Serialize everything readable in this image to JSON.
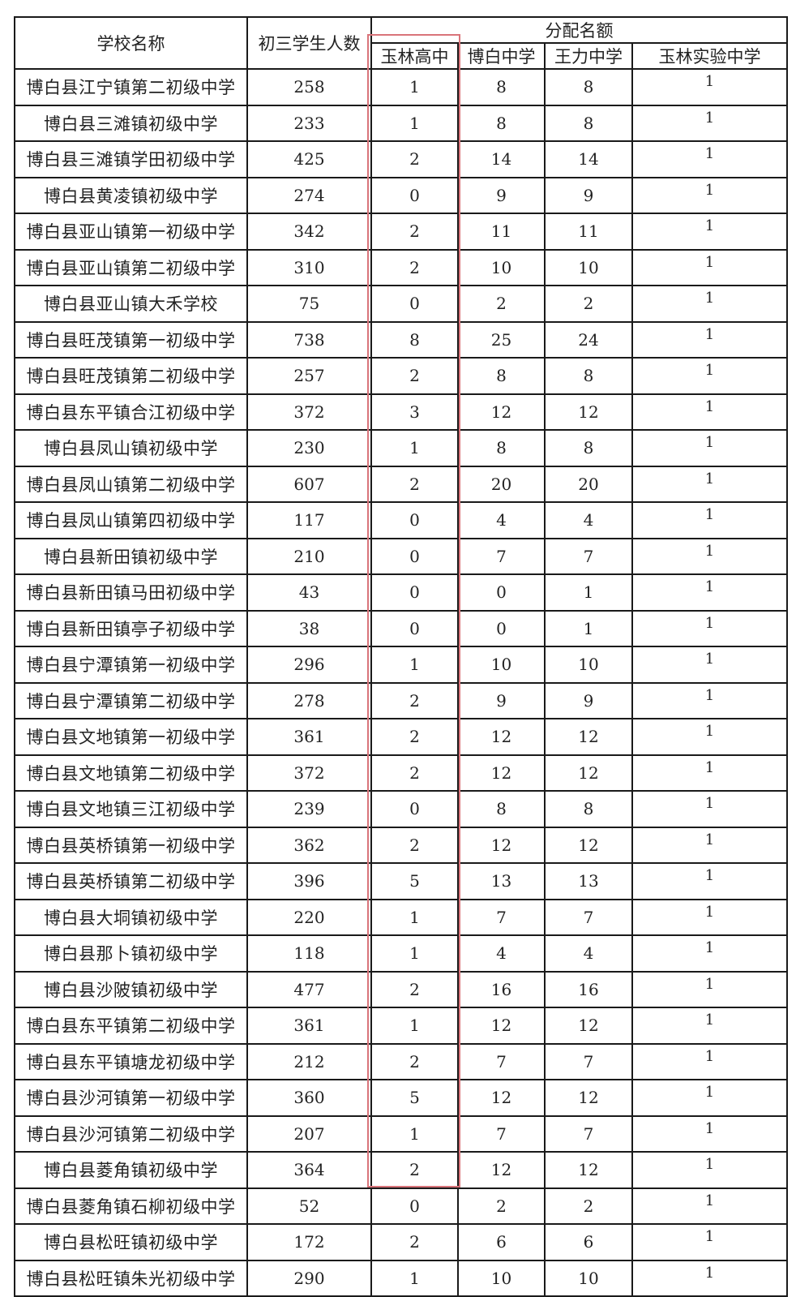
{
  "headers": {
    "school_name": "学校名称",
    "students": "初三学生人数",
    "allocation": "分配名额",
    "sub": [
      "玉林高中",
      "博白中学",
      "王力中学",
      "玉林实验中学"
    ]
  },
  "highlight_color": "#d9747a",
  "rows": [
    [
      "博白县江宁镇第二初级中学",
      "258",
      "1",
      "8",
      "8",
      "1"
    ],
    [
      "博白县三滩镇初级中学",
      "233",
      "1",
      "8",
      "8",
      "1"
    ],
    [
      "博白县三滩镇学田初级中学",
      "425",
      "2",
      "14",
      "14",
      "1"
    ],
    [
      "博白县黄凌镇初级中学",
      "274",
      "0",
      "9",
      "9",
      "1"
    ],
    [
      "博白县亚山镇第一初级中学",
      "342",
      "2",
      "11",
      "11",
      "1"
    ],
    [
      "博白县亚山镇第二初级中学",
      "310",
      "2",
      "10",
      "10",
      "1"
    ],
    [
      "博白县亚山镇大禾学校",
      "75",
      "0",
      "2",
      "2",
      "1"
    ],
    [
      "博白县旺茂镇第一初级中学",
      "738",
      "8",
      "25",
      "24",
      "1"
    ],
    [
      "博白县旺茂镇第二初级中学",
      "257",
      "2",
      "8",
      "8",
      "1"
    ],
    [
      "博白县东平镇合江初级中学",
      "372",
      "3",
      "12",
      "12",
      "1"
    ],
    [
      "博白县凤山镇初级中学",
      "230",
      "1",
      "8",
      "8",
      "1"
    ],
    [
      "博白县凤山镇第二初级中学",
      "607",
      "2",
      "20",
      "20",
      "1"
    ],
    [
      "博白县凤山镇第四初级中学",
      "117",
      "0",
      "4",
      "4",
      "1"
    ],
    [
      "博白县新田镇初级中学",
      "210",
      "0",
      "7",
      "7",
      "1"
    ],
    [
      "博白县新田镇马田初级中学",
      "43",
      "0",
      "0",
      "1",
      "1"
    ],
    [
      "博白县新田镇亭子初级中学",
      "38",
      "0",
      "0",
      "1",
      "1"
    ],
    [
      "博白县宁潭镇第一初级中学",
      "296",
      "1",
      "10",
      "10",
      "1"
    ],
    [
      "博白县宁潭镇第二初级中学",
      "278",
      "2",
      "9",
      "9",
      "1"
    ],
    [
      "博白县文地镇第一初级中学",
      "361",
      "2",
      "12",
      "12",
      "1"
    ],
    [
      "博白县文地镇第二初级中学",
      "372",
      "2",
      "12",
      "12",
      "1"
    ],
    [
      "博白县文地镇三江初级中学",
      "239",
      "0",
      "8",
      "8",
      "1"
    ],
    [
      "博白县英桥镇第一初级中学",
      "362",
      "2",
      "12",
      "12",
      "1"
    ],
    [
      "博白县英桥镇第二初级中学",
      "396",
      "5",
      "13",
      "13",
      "1"
    ],
    [
      "博白县大垌镇初级中学",
      "220",
      "1",
      "7",
      "7",
      "1"
    ],
    [
      "博白县那卜镇初级中学",
      "118",
      "1",
      "4",
      "4",
      "1"
    ],
    [
      "博白县沙陂镇初级中学",
      "477",
      "2",
      "16",
      "16",
      "1"
    ],
    [
      "博白县东平镇第二初级中学",
      "361",
      "1",
      "12",
      "12",
      "1"
    ],
    [
      "博白县东平镇塘龙初级中学",
      "212",
      "2",
      "7",
      "7",
      "1"
    ],
    [
      "博白县沙河镇第一初级中学",
      "360",
      "5",
      "12",
      "12",
      "1"
    ],
    [
      "博白县沙河镇第二初级中学",
      "207",
      "1",
      "7",
      "7",
      "1"
    ],
    [
      "博白县菱角镇初级中学",
      "364",
      "2",
      "12",
      "12",
      "1"
    ],
    [
      "博白县菱角镇石柳初级中学",
      "52",
      "0",
      "2",
      "2",
      "1"
    ],
    [
      "博白县松旺镇初级中学",
      "172",
      "2",
      "6",
      "6",
      "1"
    ],
    [
      "博白县松旺镇朱光初级中学",
      "290",
      "1",
      "10",
      "10",
      "1"
    ]
  ]
}
